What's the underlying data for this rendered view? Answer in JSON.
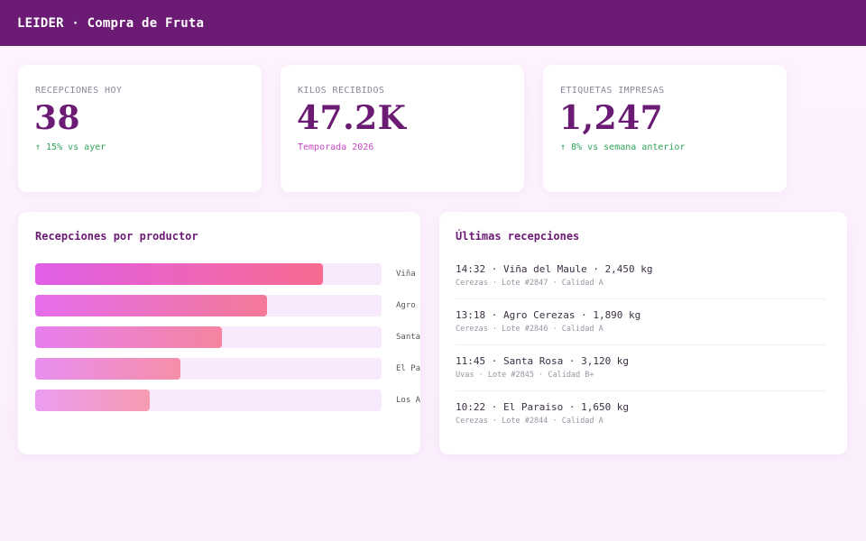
{
  "header": {
    "title": "LEIDER · Compra de Fruta"
  },
  "stats": [
    {
      "label": "RECEPCIONES HOY",
      "value": "38",
      "note": "↑ 15% vs ayer",
      "note_color": "#2fa35a"
    },
    {
      "label": "KILOS RECIBIDOS",
      "value": "47.2K",
      "note": "Temporada 2026",
      "note_color": "#c746c4"
    },
    {
      "label": "ETIQUETAS IMPRESAS",
      "value": "1,247",
      "note": "↑ 8% vs semana anterior",
      "note_color": "#2fa35a"
    }
  ],
  "producers_panel": {
    "title": "Recepciones por productor",
    "bars": [
      {
        "label": "Viña del Maule",
        "value": 0.83
      },
      {
        "label": "Agro Cerezas",
        "value": 0.67
      },
      {
        "label": "Santa Rosa",
        "value": 0.54
      },
      {
        "label": "El Paraiso",
        "value": 0.42
      },
      {
        "label": "Los Andes",
        "value": 0.33
      }
    ]
  },
  "receptions_panel": {
    "title": "Últimas recepciones",
    "items": [
      {
        "main": "14:32 · Viña del Maule · 2,450 kg",
        "sub": "Cerezas · Lote #2847 · Calidad A"
      },
      {
        "main": "13:18 · Agro Cerezas · 1,890 kg",
        "sub": "Cerezas · Lote #2846 · Calidad A"
      },
      {
        "main": "11:45 · Santa Rosa · 3,120 kg",
        "sub": "Uvas · Lote #2845 · Calidad B+"
      },
      {
        "main": "10:22 · El Paraiso · 1,650 kg",
        "sub": "Cerezas · Lote #2844 · Calidad A"
      }
    ]
  },
  "colors": {
    "brand": "#6b1b74",
    "accent": "#c746c4",
    "positive": "#2fa35a"
  }
}
